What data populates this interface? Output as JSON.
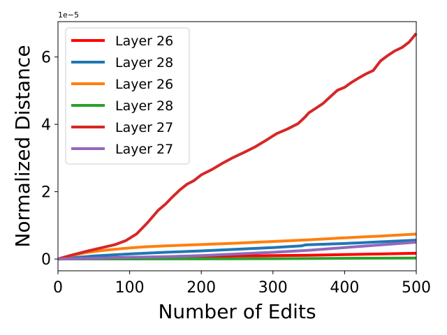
{
  "chart_data": {
    "type": "line",
    "xlabel": "Number of Edits",
    "ylabel": "Normalized Distance",
    "y_offset_label": "1e−5",
    "xlim": [
      0,
      500
    ],
    "ylim": [
      -0.35,
      7.05
    ],
    "x_ticks": [
      0,
      100,
      200,
      300,
      400,
      500
    ],
    "y_ticks": [
      0,
      2,
      4,
      6
    ],
    "x_tick_labels": [
      "0",
      "100",
      "200",
      "300",
      "400",
      "500"
    ],
    "y_tick_labels": [
      "0",
      "2",
      "4",
      "6"
    ],
    "grid": false,
    "legend_position": "upper-left",
    "series": [
      {
        "name": "Layer 26",
        "color": "#ff0000",
        "x": [
          0,
          50,
          100,
          150,
          200,
          250,
          300,
          350,
          400,
          450,
          500
        ],
        "y": [
          0,
          0.03,
          0.05,
          0.06,
          0.07,
          0.09,
          0.1,
          0.11,
          0.13,
          0.15,
          0.17
        ]
      },
      {
        "name": "Layer 28",
        "color": "#1f77b4",
        "x": [
          0,
          50,
          100,
          150,
          200,
          250,
          300,
          340,
          345,
          400,
          450,
          500
        ],
        "y": [
          0,
          0.09,
          0.15,
          0.2,
          0.24,
          0.29,
          0.34,
          0.39,
          0.42,
          0.46,
          0.51,
          0.56
        ]
      },
      {
        "name": "Layer 26",
        "color": "#ff7f0e",
        "x": [
          0,
          20,
          40,
          60,
          80,
          100,
          120,
          150,
          200,
          250,
          300,
          350,
          400,
          450,
          500
        ],
        "y": [
          0,
          0.11,
          0.19,
          0.25,
          0.29,
          0.33,
          0.36,
          0.39,
          0.43,
          0.47,
          0.52,
          0.57,
          0.63,
          0.68,
          0.74
        ]
      },
      {
        "name": "Layer 28",
        "color": "#2ca02c",
        "x": [
          0,
          100,
          200,
          300,
          400,
          500
        ],
        "y": [
          0,
          0.003,
          0.005,
          0.01,
          0.02,
          0.03
        ]
      },
      {
        "name": "Layer 27",
        "color": "#d62728",
        "x": [
          0,
          20,
          40,
          60,
          80,
          95,
          110,
          125,
          140,
          150,
          160,
          170,
          180,
          190,
          200,
          215,
          230,
          245,
          260,
          275,
          290,
          305,
          320,
          335,
          345,
          350,
          360,
          370,
          380,
          390,
          400,
          410,
          420,
          430,
          440,
          450,
          460,
          470,
          480,
          490,
          500
        ],
        "y": [
          0,
          0.12,
          0.23,
          0.33,
          0.43,
          0.55,
          0.75,
          1.08,
          1.45,
          1.63,
          1.85,
          2.05,
          2.22,
          2.33,
          2.5,
          2.66,
          2.85,
          3.02,
          3.17,
          3.33,
          3.52,
          3.72,
          3.86,
          4.02,
          4.22,
          4.34,
          4.48,
          4.62,
          4.82,
          5.01,
          5.1,
          5.25,
          5.38,
          5.5,
          5.6,
          5.88,
          6.04,
          6.18,
          6.28,
          6.44,
          6.7
        ]
      },
      {
        "name": "Layer 27",
        "color": "#9467bd",
        "x": [
          0,
          50,
          100,
          150,
          200,
          250,
          300,
          350,
          400,
          450,
          500
        ],
        "y": [
          0,
          0.02,
          0.05,
          0.07,
          0.1,
          0.15,
          0.2,
          0.26,
          0.34,
          0.42,
          0.5
        ]
      }
    ]
  }
}
